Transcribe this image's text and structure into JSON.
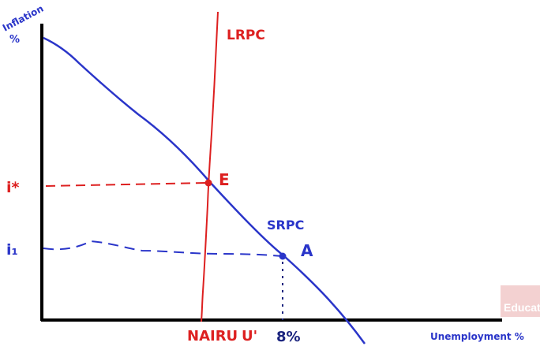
{
  "labels": {
    "y_axis_line1": "Inflation",
    "y_axis_line2": "%",
    "x_axis": "Unemployment %",
    "lrpc": "LRPC",
    "srpc": "SRPC",
    "point_e": "E",
    "point_a": "A",
    "i_star": "i*",
    "i_1": "i₁",
    "nairu": "NAIRU",
    "u_prime": "U'",
    "eight_pct": "8%"
  },
  "watermark": {
    "text": "Educate"
  },
  "colors": {
    "axis": "#000000",
    "srpc": "#2a35c9",
    "lrpc": "#dd2020",
    "red_text": "#dd2020",
    "blue_text": "#2a35c9"
  }
}
